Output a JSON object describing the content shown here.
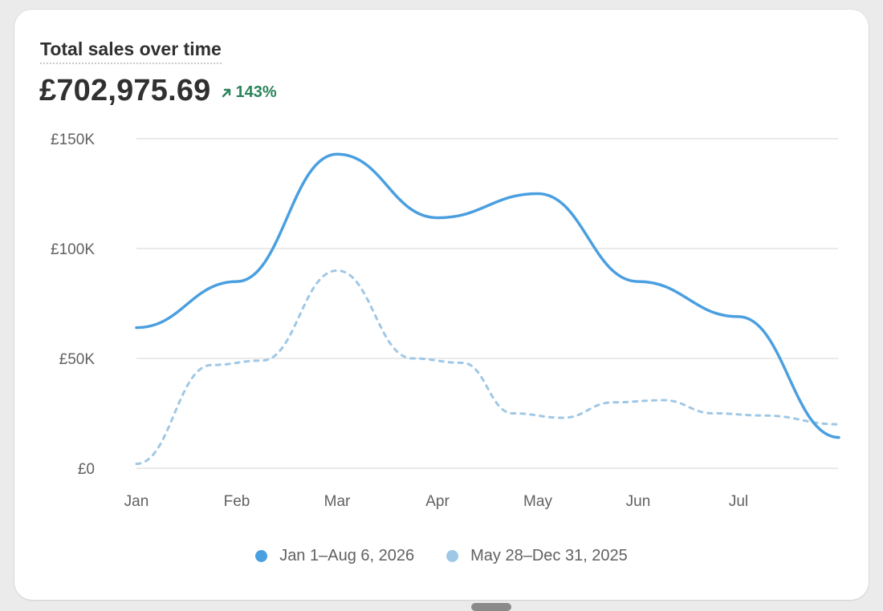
{
  "card": {
    "title": "Total sales over time",
    "total": "£702,975.69",
    "change": "143%",
    "change_color": "#29845a"
  },
  "chart_data": {
    "type": "line",
    "title": "Total sales over time",
    "categories": [
      "Jan",
      "Feb",
      "Mar",
      "Apr",
      "May",
      "Jun",
      "Jul"
    ],
    "x_range": [
      0,
      7
    ],
    "ylim": [
      0,
      150000
    ],
    "y_ticks": [
      0,
      50000,
      100000,
      150000
    ],
    "y_tick_labels": [
      "£0",
      "£50K",
      "£100K",
      "£150K"
    ],
    "grid": true,
    "legend_position": "bottom",
    "series": [
      {
        "name": "Jan 1–Aug 6, 2026",
        "color": "#4a9fe0",
        "style": "solid",
        "points": [
          [
            0,
            64000
          ],
          [
            1,
            85000
          ],
          [
            2,
            143000
          ],
          [
            3,
            114000
          ],
          [
            4,
            125000
          ],
          [
            5,
            85000
          ],
          [
            6,
            69000
          ],
          [
            7,
            14000
          ]
        ]
      },
      {
        "name": "May 28–Dec 31, 2025",
        "color": "#9fc8e6",
        "style": "dashed",
        "points": [
          [
            0,
            2000
          ],
          [
            0.75,
            47000
          ],
          [
            1.25,
            49000
          ],
          [
            2,
            90000
          ],
          [
            2.75,
            50000
          ],
          [
            3.25,
            48000
          ],
          [
            3.75,
            25000
          ],
          [
            4.25,
            23000
          ],
          [
            4.75,
            30000
          ],
          [
            5.25,
            31000
          ],
          [
            5.75,
            25000
          ],
          [
            6.25,
            24000
          ],
          [
            7,
            20000
          ]
        ]
      }
    ]
  }
}
